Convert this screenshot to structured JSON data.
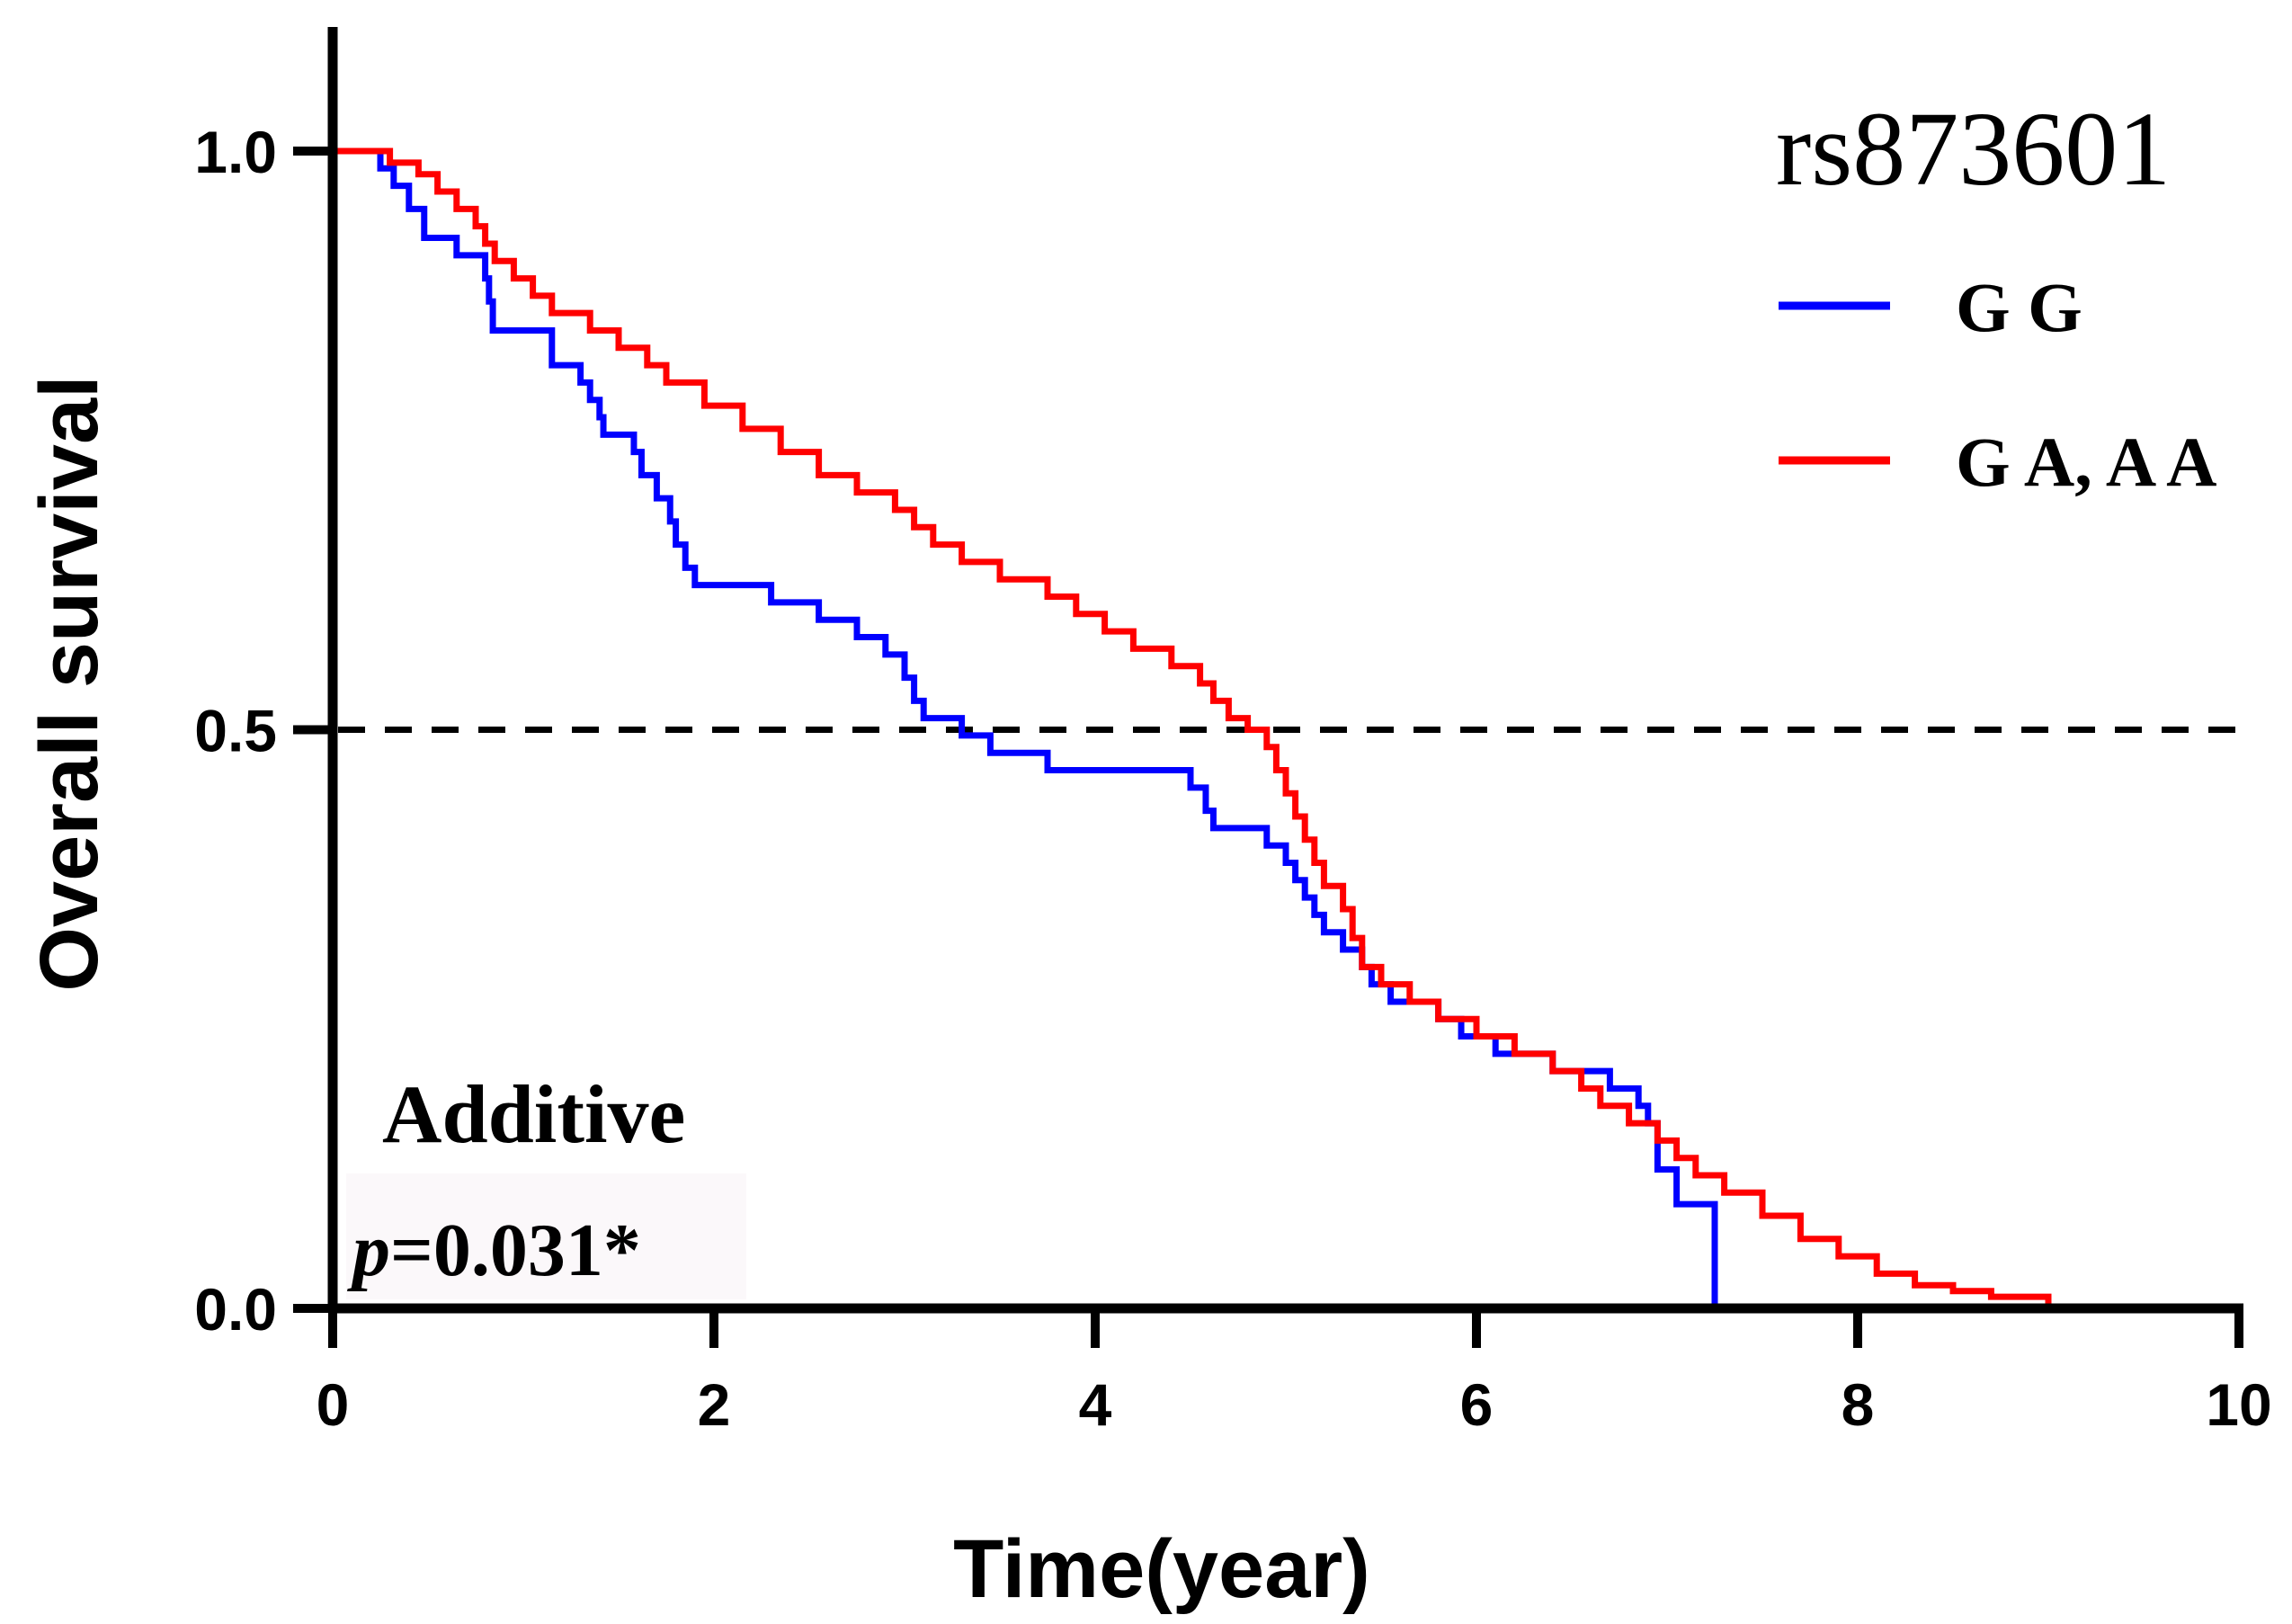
{
  "chart_data": {
    "type": "line",
    "step": true,
    "xlabel": "Time(year)",
    "ylabel": "Overall survival",
    "xlim": [
      0,
      10
    ],
    "ylim": [
      0,
      1
    ],
    "xticks": [
      "0",
      "2",
      "4",
      "6",
      "8",
      "10"
    ],
    "yticks": [
      "0.0",
      "0.5",
      "1.0"
    ],
    "reference_line": {
      "y": 0.5,
      "style": "dashed",
      "color": "#000000"
    },
    "legend": {
      "title": "rs873601",
      "position": "top-right"
    },
    "annotation": {
      "title": "Additive",
      "p_prefix": "p",
      "p_suffix": "=0.031*"
    },
    "series": [
      {
        "name": "G G",
        "color": "#0000ff",
        "x": [
          0,
          0.25,
          0.32,
          0.4,
          0.48,
          0.65,
          0.8,
          0.82,
          0.84,
          1.15,
          1.3,
          1.35,
          1.4,
          1.42,
          1.58,
          1.62,
          1.7,
          1.77,
          1.8,
          1.85,
          1.9,
          2.3,
          2.55,
          2.75,
          2.9,
          3.0,
          3.05,
          3.1,
          3.3,
          3.45,
          3.75,
          4.5,
          4.58,
          4.62,
          4.9,
          5.0,
          5.05,
          5.1,
          5.15,
          5.2,
          5.3,
          5.4,
          5.45,
          5.55,
          5.8,
          5.92,
          6.1,
          6.4,
          6.7,
          6.85,
          6.9,
          6.95,
          7.05,
          7.25
        ],
        "y": [
          1.0,
          0.985,
          0.97,
          0.95,
          0.925,
          0.91,
          0.89,
          0.87,
          0.845,
          0.815,
          0.8,
          0.785,
          0.77,
          0.755,
          0.74,
          0.72,
          0.7,
          0.68,
          0.66,
          0.64,
          0.625,
          0.61,
          0.595,
          0.58,
          0.565,
          0.545,
          0.525,
          0.51,
          0.495,
          0.48,
          0.465,
          0.45,
          0.43,
          0.415,
          0.4,
          0.385,
          0.37,
          0.355,
          0.34,
          0.325,
          0.31,
          0.295,
          0.28,
          0.265,
          0.25,
          0.235,
          0.22,
          0.205,
          0.19,
          0.175,
          0.16,
          0.12,
          0.09,
          0.0
        ]
      },
      {
        "name": "G A, A A",
        "color": "#ff0000",
        "x": [
          0,
          0.3,
          0.45,
          0.55,
          0.65,
          0.75,
          0.8,
          0.85,
          0.95,
          1.05,
          1.15,
          1.35,
          1.5,
          1.65,
          1.75,
          1.95,
          2.15,
          2.35,
          2.55,
          2.75,
          2.95,
          3.05,
          3.15,
          3.3,
          3.5,
          3.75,
          3.9,
          4.05,
          4.2,
          4.4,
          4.55,
          4.62,
          4.7,
          4.8,
          4.9,
          4.95,
          5.0,
          5.05,
          5.1,
          5.15,
          5.2,
          5.3,
          5.35,
          5.4,
          5.5,
          5.65,
          5.8,
          6.0,
          6.2,
          6.4,
          6.55,
          6.65,
          6.8,
          6.95,
          7.05,
          7.15,
          7.3,
          7.5,
          7.7,
          7.9,
          8.1,
          8.3,
          8.5,
          8.7,
          9.0
        ],
        "y": [
          1.0,
          0.99,
          0.98,
          0.965,
          0.95,
          0.935,
          0.92,
          0.905,
          0.89,
          0.875,
          0.86,
          0.845,
          0.83,
          0.815,
          0.8,
          0.78,
          0.76,
          0.74,
          0.72,
          0.705,
          0.69,
          0.675,
          0.66,
          0.645,
          0.63,
          0.615,
          0.6,
          0.585,
          0.57,
          0.555,
          0.54,
          0.525,
          0.51,
          0.5,
          0.485,
          0.465,
          0.445,
          0.425,
          0.405,
          0.385,
          0.365,
          0.345,
          0.32,
          0.295,
          0.28,
          0.265,
          0.25,
          0.235,
          0.22,
          0.205,
          0.19,
          0.175,
          0.16,
          0.145,
          0.13,
          0.115,
          0.1,
          0.08,
          0.06,
          0.045,
          0.03,
          0.02,
          0.015,
          0.01,
          0.0
        ]
      }
    ]
  }
}
